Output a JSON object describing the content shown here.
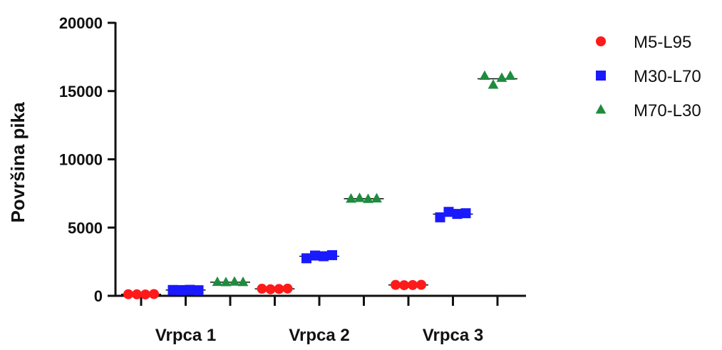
{
  "chart_data": {
    "type": "scatter",
    "title": "",
    "xlabel": "",
    "ylabel": "Površina pika",
    "ylim": [
      0,
      20000
    ],
    "yticks": [
      0,
      5000,
      10000,
      15000,
      20000
    ],
    "categories": [
      "Vrpca 1",
      "Vrpca 2",
      "Vrpca 3"
    ],
    "grid": false,
    "legend_position": "right",
    "series": [
      {
        "name": "M5-L95",
        "marker": "circle",
        "color": "#ff1a1a",
        "values": [
          [
            120,
            110,
            100,
            130
          ],
          [
            520,
            480,
            500,
            530
          ],
          [
            800,
            780,
            790,
            810
          ]
        ],
        "means": [
          115,
          508,
          795
        ]
      },
      {
        "name": "M30-L70",
        "marker": "square",
        "color": "#1a1aff",
        "values": [
          [
            430,
            420,
            440,
            410
          ],
          [
            2750,
            2950,
            2900,
            2980
          ],
          [
            5750,
            6150,
            6000,
            6050
          ]
        ],
        "means": [
          425,
          2895,
          5988
        ]
      },
      {
        "name": "M70-L30",
        "marker": "triangle",
        "color": "#1e8c3e",
        "values": [
          [
            1000,
            980,
            1020,
            990
          ],
          [
            7100,
            7150,
            7080,
            7120
          ],
          [
            16100,
            15450,
            15950,
            16100
          ]
        ],
        "means": [
          998,
          7113,
          15900
        ]
      }
    ]
  }
}
